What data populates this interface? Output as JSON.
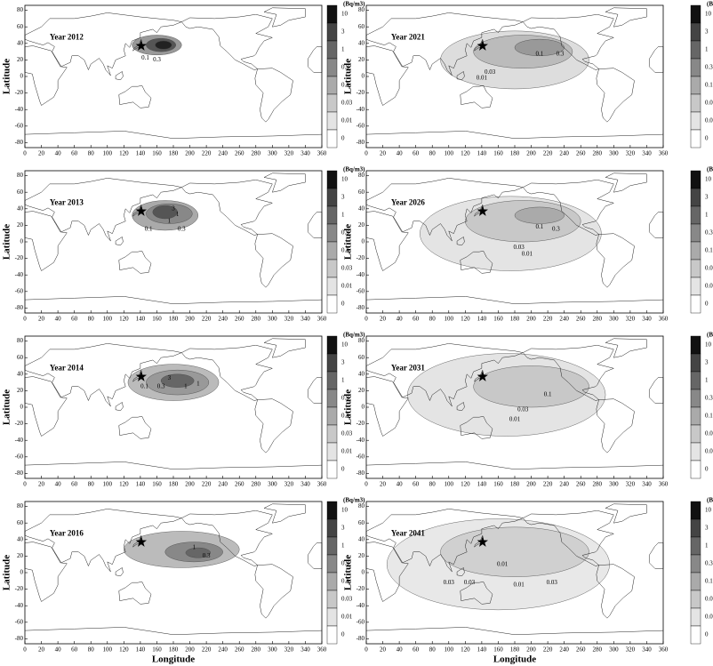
{
  "y_axis_label": "Latitude",
  "x_axis_label": "Longitude",
  "unit": "(Bq/m3)",
  "xticks": [
    0,
    20,
    40,
    60,
    80,
    100,
    120,
    140,
    160,
    180,
    200,
    220,
    240,
    260,
    280,
    300,
    320,
    340,
    360
  ],
  "yticks": [
    80,
    60,
    40,
    20,
    0,
    -20,
    -40,
    -60,
    -80
  ],
  "colorbar": {
    "levels": [
      10,
      3,
      1,
      0.3,
      0.1,
      0.03,
      0.01,
      0
    ],
    "colors": [
      "#111111",
      "#444444",
      "#666666",
      "#888888",
      "#aaaaaa",
      "#c8c8c8",
      "#e4e4e4",
      "#ffffff"
    ]
  },
  "panels": [
    {
      "title": "Year 2012",
      "contour_labels": [
        "0.1",
        "0.3"
      ]
    },
    {
      "title": "Year 2013",
      "contour_labels": [
        "3",
        "1",
        "0.1",
        "1",
        "0.3"
      ]
    },
    {
      "title": "Year 2014",
      "contour_labels": [
        "0.1",
        "0.3",
        "1",
        "3",
        "1"
      ]
    },
    {
      "title": "Year 2016",
      "contour_labels": [
        "1",
        "0.3"
      ]
    },
    {
      "title": "Year 2021",
      "contour_labels": [
        "0.1",
        "0.3",
        "0.03",
        "0.01"
      ]
    },
    {
      "title": "Year 2026",
      "contour_labels": [
        "0.1",
        "0.3",
        "0.03",
        "0.01"
      ]
    },
    {
      "title": "Year 2031",
      "contour_labels": [
        "0.1",
        "0.03",
        "0.01"
      ]
    },
    {
      "title": "Year 2041",
      "contour_labels": [
        "0.03",
        "0.03",
        "0.01",
        "0.03",
        "0.01"
      ]
    }
  ]
}
